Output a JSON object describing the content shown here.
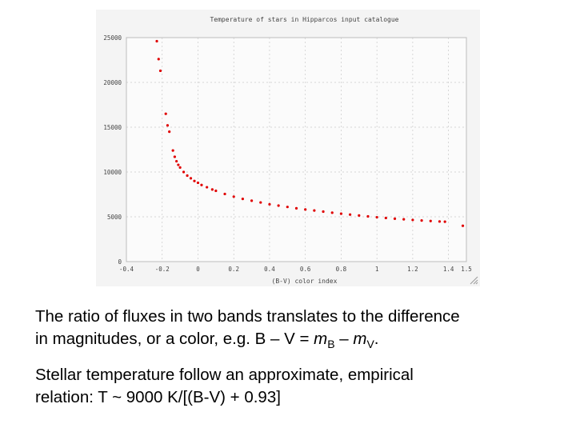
{
  "chart_data": {
    "type": "scatter",
    "title": "Temperature of stars in Hipparcos input catalogue",
    "xlabel": "(B-V) color index",
    "ylabel": "",
    "xlim": [
      -0.4,
      1.5
    ],
    "ylim": [
      0,
      25000
    ],
    "xticks": [
      -0.4,
      -0.2,
      0,
      0.2,
      0.4,
      0.6,
      0.8,
      1,
      1.2,
      1.4,
      1.5
    ],
    "xtick_labels": [
      "-0.4",
      "-0.2",
      "0",
      "0.2",
      "0.4",
      "0.6",
      "0.8",
      "1",
      "1.2",
      "1.4",
      "1.5"
    ],
    "yticks": [
      0,
      5000,
      10000,
      15000,
      20000,
      25000
    ],
    "ytick_labels": [
      "0",
      "5000",
      "10000",
      "15000",
      "20000",
      "25000"
    ],
    "grid": true,
    "series": [
      {
        "color": "#e00000",
        "points": [
          [
            -0.23,
            24600
          ],
          [
            -0.22,
            22600
          ],
          [
            -0.21,
            21300
          ],
          [
            -0.18,
            16500
          ],
          [
            -0.17,
            15200
          ],
          [
            -0.16,
            14500
          ],
          [
            -0.14,
            12400
          ],
          [
            -0.13,
            11700
          ],
          [
            -0.12,
            11200
          ],
          [
            -0.11,
            10800
          ],
          [
            -0.1,
            10500
          ],
          [
            -0.08,
            10000
          ],
          [
            -0.06,
            9600
          ],
          [
            -0.04,
            9300
          ],
          [
            -0.02,
            9000
          ],
          [
            0.0,
            8800
          ],
          [
            0.02,
            8550
          ],
          [
            0.05,
            8300
          ],
          [
            0.08,
            8050
          ],
          [
            0.1,
            7900
          ],
          [
            0.15,
            7550
          ],
          [
            0.2,
            7250
          ],
          [
            0.25,
            7000
          ],
          [
            0.3,
            6800
          ],
          [
            0.35,
            6600
          ],
          [
            0.4,
            6400
          ],
          [
            0.45,
            6250
          ],
          [
            0.5,
            6100
          ],
          [
            0.55,
            5950
          ],
          [
            0.6,
            5820
          ],
          [
            0.65,
            5700
          ],
          [
            0.7,
            5580
          ],
          [
            0.75,
            5460
          ],
          [
            0.8,
            5350
          ],
          [
            0.85,
            5250
          ],
          [
            0.9,
            5150
          ],
          [
            0.95,
            5050
          ],
          [
            1.0,
            4950
          ],
          [
            1.05,
            4870
          ],
          [
            1.1,
            4790
          ],
          [
            1.15,
            4720
          ],
          [
            1.2,
            4650
          ],
          [
            1.25,
            4590
          ],
          [
            1.3,
            4530
          ],
          [
            1.35,
            4480
          ],
          [
            1.38,
            4450
          ],
          [
            1.48,
            4000
          ]
        ]
      }
    ]
  },
  "caption": {
    "p1_line1": "The ratio of fluxes in two bands translates to the difference",
    "p1_line2_a": "in magnitudes, or a color, e.g.  B – V = ",
    "p1_m": "m",
    "p1_sub_b": "B",
    "p1_dash": " – ",
    "p1_sub_v": "V",
    "p1_end": ".",
    "p2_line1": "Stellar temperature follow an approximate, empirical",
    "p2_line2": "relation:  T ~ 9000 K/[(B-V) + 0.93]"
  }
}
